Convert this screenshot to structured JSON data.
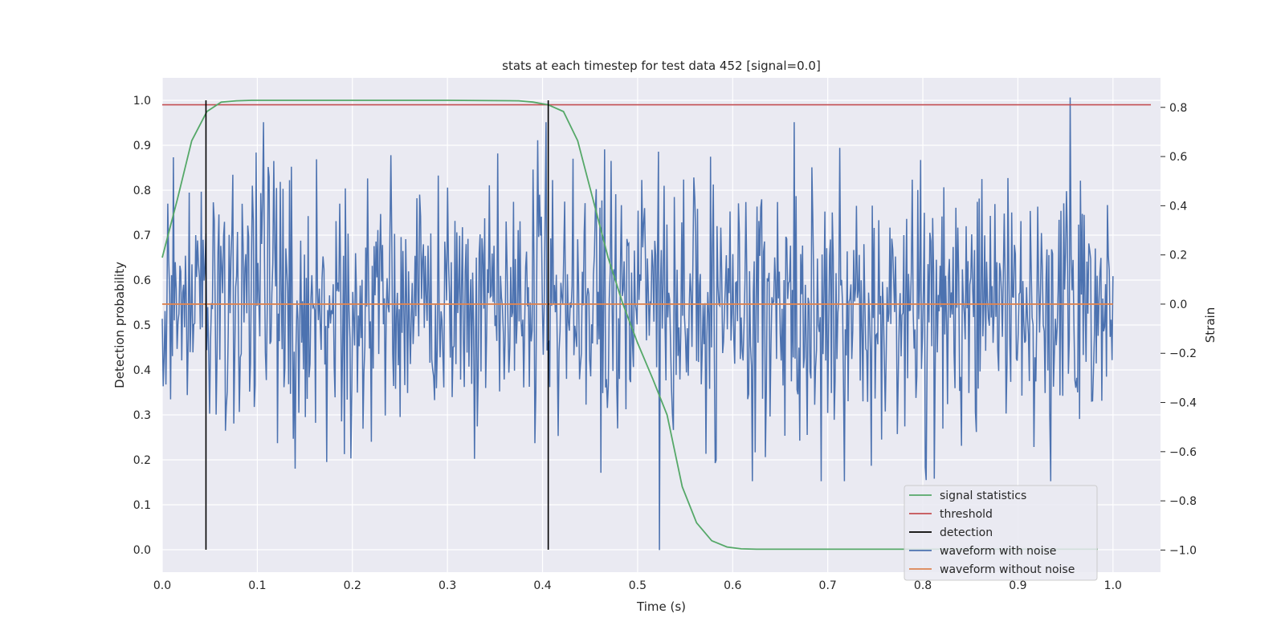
{
  "chart_data": {
    "type": "line",
    "title": "stats at each timestep for test data 452 [signal=0.0]",
    "xlabel": "Time (s)",
    "ylabel": "Detection probability",
    "y2label": "Strain",
    "xlim": [
      0.0,
      1.05
    ],
    "ylim": [
      -0.05,
      1.05
    ],
    "y2lim": [
      -1.09,
      0.92
    ],
    "grid": true,
    "legend_position": "bottom-right",
    "x_ticks": [
      "0.0",
      "0.1",
      "0.2",
      "0.3",
      "0.4",
      "0.5",
      "0.6",
      "0.7",
      "0.8",
      "0.9",
      "1.0"
    ],
    "y_ticks": [
      "0.0",
      "0.1",
      "0.2",
      "0.3",
      "0.4",
      "0.5",
      "0.6",
      "0.7",
      "0.8",
      "0.9",
      "1.0"
    ],
    "y2_ticks": [
      "−1.0",
      "−0.8",
      "−0.6",
      "−0.4",
      "−0.2",
      "0.0",
      "0.2",
      "0.4",
      "0.6",
      "0.8"
    ],
    "colors": {
      "signal": "#55a868",
      "threshold": "#c44e52",
      "detection": "#000000",
      "noisy": "#4c72b0",
      "clean": "#dd8452",
      "plot_bg": "#eaeaf2",
      "grid": "#ffffff"
    },
    "series": [
      {
        "name": "signal statistics",
        "axis": "left",
        "x": [
          0.0,
          0.016,
          0.031,
          0.047,
          0.062,
          0.078,
          0.094,
          0.109,
          0.2,
          0.3,
          0.375,
          0.39,
          0.406,
          0.422,
          0.437,
          0.453,
          0.469,
          0.484,
          0.5,
          0.516,
          0.531,
          0.547,
          0.562,
          0.578,
          0.594,
          0.609,
          0.625,
          0.7,
          0.8,
          0.9,
          0.984
        ],
        "values": [
          0.65,
          0.78,
          0.91,
          0.975,
          0.996,
          0.999,
          1.0,
          1.0,
          1.0,
          1.0,
          0.999,
          0.996,
          0.99,
          0.975,
          0.91,
          0.78,
          0.65,
          0.55,
          0.46,
          0.38,
          0.3,
          0.14,
          0.06,
          0.02,
          0.006,
          0.002,
          0.001,
          0.001,
          0.001,
          0.001,
          0.001
        ]
      },
      {
        "name": "threshold",
        "axis": "left",
        "value": 0.99
      },
      {
        "name": "detection",
        "axis": "left",
        "x": [
          0.046,
          0.406
        ],
        "range": [
          0.0,
          1.0
        ]
      },
      {
        "name": "waveform with noise",
        "axis": "right",
        "x_range": [
          0.0,
          1.0
        ],
        "y_range": [
          -1.0,
          0.84
        ],
        "note_points": [
          {
            "x": 0.955,
            "y": 0.84
          },
          {
            "x": 0.523,
            "y": -1.0
          },
          {
            "x": 0.812,
            "y": -0.71
          }
        ]
      },
      {
        "name": "waveform without noise",
        "axis": "right",
        "x": [
          0.0,
          1.0
        ],
        "values": [
          0.0,
          0.0
        ]
      }
    ]
  }
}
